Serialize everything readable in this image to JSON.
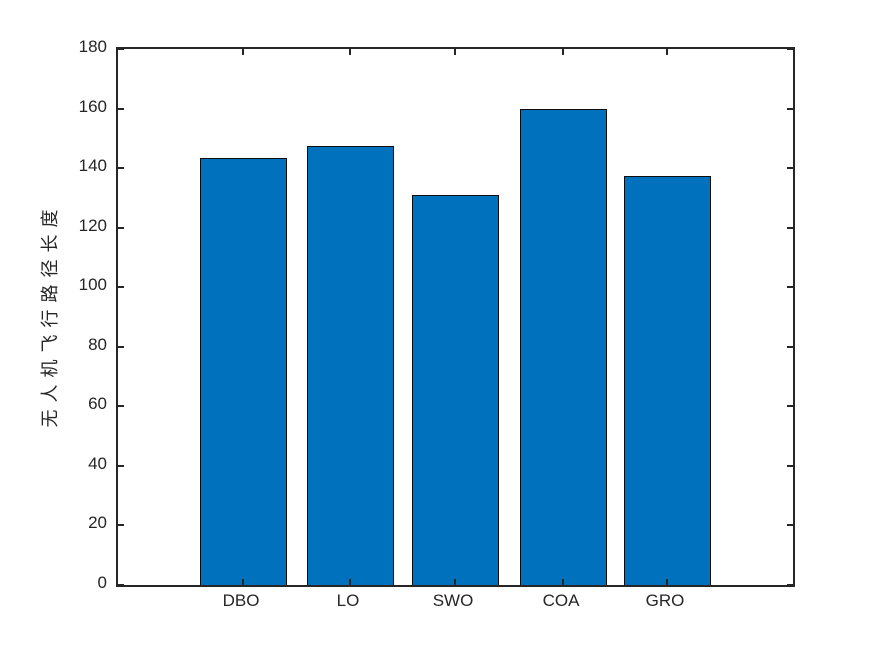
{
  "chart_data": {
    "type": "bar",
    "categories": [
      "DBO",
      "LO",
      "SWO",
      "COA",
      "GRO"
    ],
    "values": [
      143.5,
      147.5,
      131,
      160,
      137.5
    ],
    "title": "",
    "xlabel": "",
    "ylabel": "无人机飞行路径长度",
    "ylim": [
      0,
      180
    ],
    "yticks": [
      0,
      20,
      40,
      60,
      80,
      100,
      120,
      140,
      160,
      180
    ],
    "grid": "off",
    "legend": "none",
    "bar_color": "#0072BD",
    "bar_edge_color": "#0d0d0d",
    "axis_color": "#262626",
    "background_color": "#ffffff"
  }
}
